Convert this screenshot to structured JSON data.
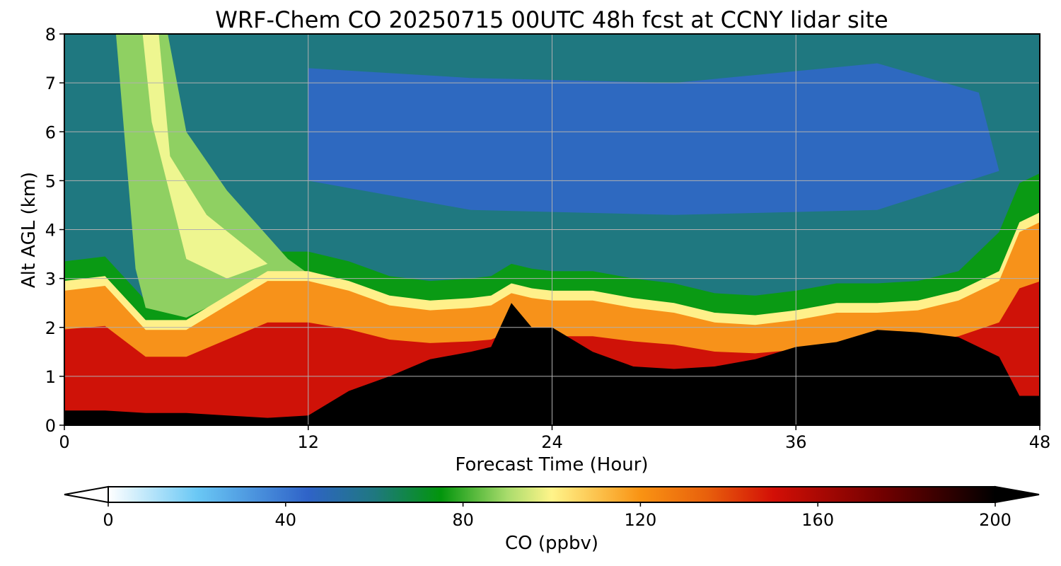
{
  "chart_data": {
    "type": "heatmap",
    "title": "WRF-Chem CO  20250715 00UTC 48h fcst at CCNY lidar site",
    "xlabel": "Forecast Time (Hour)",
    "ylabel": "Alt AGL (km)",
    "xlim": [
      0,
      48
    ],
    "ylim": [
      0,
      8
    ],
    "x_ticks": [
      "0",
      "12",
      "24",
      "36",
      "48"
    ],
    "y_ticks": [
      "0",
      "1",
      "2",
      "3",
      "4",
      "5",
      "6",
      "7",
      "8"
    ],
    "grid": true,
    "x": [
      0,
      2,
      4,
      6,
      8,
      10,
      12,
      14,
      16,
      18,
      20,
      21,
      22,
      23,
      24,
      26,
      28,
      30,
      32,
      34,
      36,
      38,
      40,
      42,
      44,
      46,
      47,
      48
    ],
    "terrain_top_km": [
      0.3,
      0.3,
      0.25,
      0.25,
      0.2,
      0.15,
      0.2,
      0.7,
      1.0,
      1.35,
      1.5,
      1.6,
      2.5,
      2.0,
      2.0,
      1.5,
      1.2,
      1.15,
      1.2,
      1.35,
      1.6,
      1.7,
      1.95,
      1.9,
      1.8,
      1.4,
      0.6,
      0.6
    ],
    "boundary_top_km": [
      2.8,
      2.9,
      2.0,
      2.0,
      2.5,
      3.0,
      3.0,
      2.8,
      2.5,
      2.4,
      2.45,
      2.5,
      2.75,
      2.65,
      2.6,
      2.6,
      2.45,
      2.35,
      2.15,
      2.1,
      2.2,
      2.35,
      2.35,
      2.4,
      2.6,
      3.0,
      4.0,
      4.2
    ],
    "colorbar": {
      "label": "CO  (ppbv)",
      "vmin": 0,
      "vmax": 200,
      "ticks": [
        "0",
        "40",
        "80",
        "120",
        "160",
        "200"
      ],
      "stops": [
        {
          "value": 0,
          "color": "#ffffff"
        },
        {
          "value": 20,
          "color": "#6ac8f5"
        },
        {
          "value": 45,
          "color": "#2f63c8"
        },
        {
          "value": 60,
          "color": "#1f7880"
        },
        {
          "value": 75,
          "color": "#02950c"
        },
        {
          "value": 90,
          "color": "#a9dc6c"
        },
        {
          "value": 100,
          "color": "#fff48a"
        },
        {
          "value": 120,
          "color": "#f99313"
        },
        {
          "value": 135,
          "color": "#e8600c"
        },
        {
          "value": 150,
          "color": "#d30f06"
        },
        {
          "value": 175,
          "color": "#700000"
        },
        {
          "value": 200,
          "color": "#000000"
        }
      ]
    }
  }
}
